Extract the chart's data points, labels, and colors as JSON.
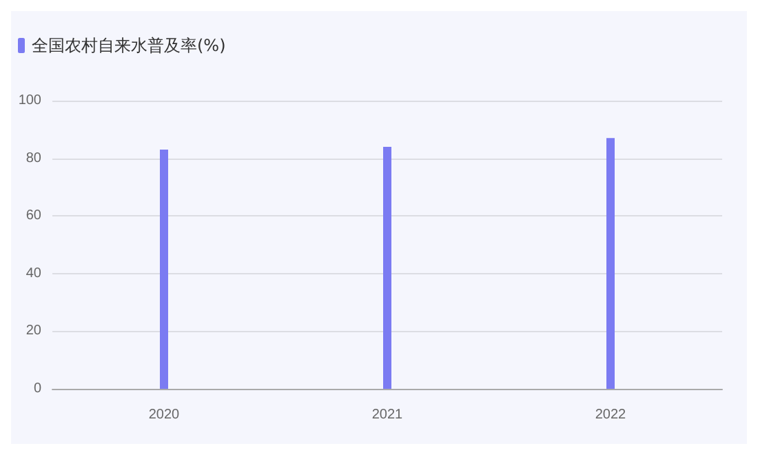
{
  "chart_data": {
    "type": "bar",
    "categories": [
      "2020",
      "2021",
      "2022"
    ],
    "series": [
      {
        "name": "全国农村自来水普及率(%)",
        "color": "#7b7bf2",
        "values": [
          83,
          84,
          87
        ]
      }
    ],
    "ylim": [
      0,
      100
    ],
    "yticks": [
      0,
      20,
      40,
      60,
      80,
      100
    ],
    "grid": "y",
    "legend": "top left"
  }
}
